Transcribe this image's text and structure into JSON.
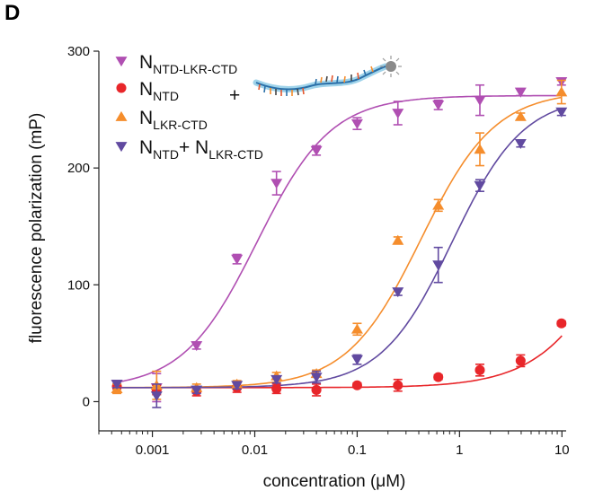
{
  "panel_label": "D",
  "legend_connector": "+",
  "oligo_icon": "fluorescent-labeled-rna-oligo-icon",
  "chart_data": {
    "type": "scatter",
    "xlabel": "concentration (μM)",
    "ylabel": "fluorescence polarization (mP)",
    "xscale": "log",
    "xlim": [
      0.0003,
      11
    ],
    "ylim": [
      -25,
      300
    ],
    "x_ticks": [
      0.001,
      0.01,
      0.1,
      1,
      10
    ],
    "x_tick_labels": [
      "0.001",
      "0.01",
      "0.1",
      "1",
      "10"
    ],
    "y_ticks": [
      0,
      100,
      200,
      300
    ],
    "y_tick_labels": [
      "0",
      "100",
      "200",
      "300"
    ],
    "grid": false,
    "legend_placement": "top-left",
    "series": [
      {
        "name": "N",
        "name_sub": "NTD-LKR-CTD",
        "marker": "triangle-down",
        "color": "#b04fb2",
        "x": [
          0.00045,
          0.0011,
          0.0027,
          0.0067,
          0.0163,
          0.04,
          0.1,
          0.25,
          0.62,
          1.58,
          3.95,
          9.9
        ],
        "y": [
          15,
          12,
          48,
          122,
          187,
          215,
          238,
          247,
          254,
          258,
          265,
          274
        ],
        "err": [
          3,
          12,
          3,
          4,
          10,
          4,
          5,
          10,
          4,
          13,
          3,
          3
        ],
        "fit": {
          "bottom": 11,
          "top": 262,
          "ec50": 0.0105,
          "hill": 1.2
        }
      },
      {
        "name": "N",
        "name_sub": "NTD",
        "marker": "circle",
        "color": "#e8262a",
        "x": [
          0.00045,
          0.0011,
          0.0027,
          0.0067,
          0.0163,
          0.04,
          0.1,
          0.25,
          0.62,
          1.58,
          3.95,
          9.9
        ],
        "y": [
          13,
          10,
          9,
          12,
          11,
          10,
          14,
          14,
          21,
          27,
          35,
          67
        ],
        "err": [
          2,
          4,
          4,
          4,
          4,
          5,
          2,
          5,
          2,
          5,
          5,
          2
        ],
        "fit": {
          "bottom": 12,
          "top": 260,
          "ec50": 40,
          "hill": 1.1
        }
      },
      {
        "name": "N",
        "name_sub": "LKR-CTD",
        "marker": "triangle-up",
        "color": "#f58d2c",
        "x": [
          0.00045,
          0.0011,
          0.0027,
          0.0067,
          0.0163,
          0.04,
          0.1,
          0.25,
          0.62,
          1.58,
          3.95,
          9.9
        ],
        "y": [
          11,
          14,
          12,
          15,
          22,
          24,
          62,
          138,
          168,
          216,
          244,
          265
        ],
        "err": [
          4,
          12,
          3,
          3,
          3,
          3,
          5,
          3,
          5,
          14,
          3,
          10
        ],
        "fit": {
          "bottom": 12,
          "top": 266,
          "ec50": 0.42,
          "hill": 1.2
        }
      },
      {
        "name": "N",
        "name_sub": "NTD",
        "name_plus": "+ N",
        "name_sub2": "LKR-CTD",
        "marker": "triangle-down",
        "color": "#614aa0",
        "x": [
          0.00045,
          0.0011,
          0.0027,
          0.0067,
          0.0163,
          0.04,
          0.1,
          0.25,
          0.62,
          1.58,
          3.95,
          9.9
        ],
        "y": [
          15,
          5,
          10,
          14,
          19,
          21,
          36,
          94,
          117,
          185,
          221,
          248
        ],
        "err": [
          3,
          10,
          3,
          3,
          3,
          5,
          4,
          3,
          15,
          5,
          3,
          3
        ],
        "fit": {
          "bottom": 12,
          "top": 262,
          "ec50": 0.85,
          "hill": 1.25
        }
      }
    ]
  }
}
